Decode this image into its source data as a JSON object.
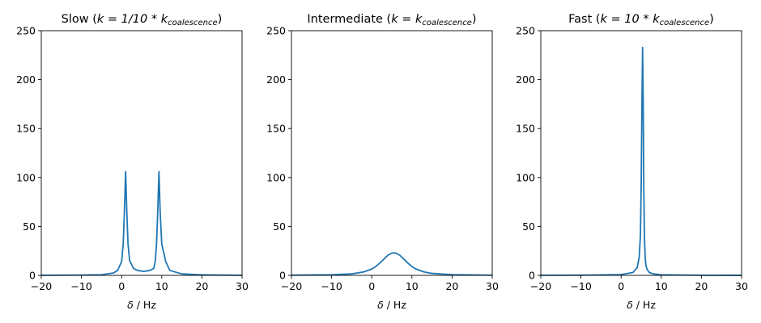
{
  "chart_data": [
    {
      "type": "line",
      "title": "Slow (",
      "title_math": {
        "eq": "k = 1/10 * k",
        "sub": "coalescence",
        "close": ")"
      },
      "xlabel_symbol": "δ",
      "xlabel_text": " / Hz",
      "xlim": [
        -20,
        30
      ],
      "ylim": [
        0,
        250
      ],
      "xticks": [
        -20,
        -10,
        0,
        10,
        20,
        30
      ],
      "yticks": [
        0,
        50,
        100,
        150,
        200,
        250
      ],
      "xtick_labels": [
        "−20",
        "−10",
        "0",
        "10",
        "20",
        "30"
      ],
      "ytick_labels": [
        "0",
        "50",
        "100",
        "150",
        "200",
        "250"
      ],
      "color": "#1f77b4",
      "series": [
        {
          "x": [
            -20,
            -10,
            -5,
            -2,
            -1,
            0,
            0.4,
            0.7,
            1.0,
            1.3,
            1.6,
            2,
            3,
            4,
            5.5,
            7,
            8,
            8.4,
            8.7,
            9.0,
            9.3,
            9.6,
            10,
            11,
            12,
            15,
            20,
            30
          ],
          "y": [
            0.1,
            0.3,
            0.6,
            2.5,
            5,
            14,
            32,
            65,
            106,
            65,
            32,
            15,
            7,
            5,
            4,
            5,
            7,
            15,
            32,
            65,
            106,
            65,
            32,
            14,
            5,
            1.5,
            0.5,
            0.1
          ]
        }
      ]
    },
    {
      "type": "line",
      "title": "Intermediate (",
      "title_math": {
        "eq": "k = k",
        "sub": "coalescence",
        "close": ")"
      },
      "xlabel_symbol": "δ",
      "xlabel_text": " / Hz",
      "xlim": [
        -20,
        30
      ],
      "ylim": [
        0,
        250
      ],
      "xticks": [
        -20,
        -10,
        0,
        10,
        20,
        30
      ],
      "yticks": [
        0,
        50,
        100,
        150,
        200,
        250
      ],
      "xtick_labels": [
        "−20",
        "−10",
        "0",
        "10",
        "20",
        "30"
      ],
      "ytick_labels": [
        "0",
        "50",
        "100",
        "150",
        "200",
        "250"
      ],
      "color": "#1f77b4",
      "series": [
        {
          "x": [
            -20,
            -10,
            -5,
            -2,
            0,
            1,
            2,
            3,
            4,
            5,
            5.5,
            6,
            7,
            8,
            9,
            10,
            11,
            13,
            15,
            20,
            30
          ],
          "y": [
            0.2,
            0.6,
            1.5,
            3.5,
            6.5,
            9,
            12.5,
            16.5,
            20.5,
            22.8,
            23,
            22.8,
            20.5,
            16.5,
            12.5,
            9,
            6.5,
            3.5,
            2,
            0.7,
            0.2
          ]
        }
      ]
    },
    {
      "type": "line",
      "title": "Fast (",
      "title_math": {
        "eq": "k = 10 * k",
        "sub": "coalescence",
        "close": ")"
      },
      "xlabel_symbol": "δ",
      "xlabel_text": " / Hz",
      "xlim": [
        -20,
        30
      ],
      "ylim": [
        0,
        250
      ],
      "xticks": [
        -20,
        -10,
        0,
        10,
        20,
        30
      ],
      "yticks": [
        0,
        50,
        100,
        150,
        200,
        250
      ],
      "xtick_labels": [
        "−20",
        "−10",
        "0",
        "10",
        "20",
        "30"
      ],
      "ytick_labels": [
        "0",
        "50",
        "100",
        "150",
        "200",
        "250"
      ],
      "color": "#1f77b4",
      "series": [
        {
          "x": [
            -20,
            -10,
            0,
            3,
            4,
            4.5,
            4.8,
            5.0,
            5.2,
            5.35,
            5.5,
            5.65,
            5.8,
            6.0,
            6.2,
            6.5,
            7,
            8,
            10,
            20,
            30
          ],
          "y": [
            0.1,
            0.2,
            0.8,
            3,
            8,
            18,
            40,
            90,
            180,
            233,
            180,
            90,
            40,
            18,
            10,
            6,
            3,
            1.5,
            0.6,
            0.1,
            0.05
          ]
        }
      ]
    }
  ]
}
